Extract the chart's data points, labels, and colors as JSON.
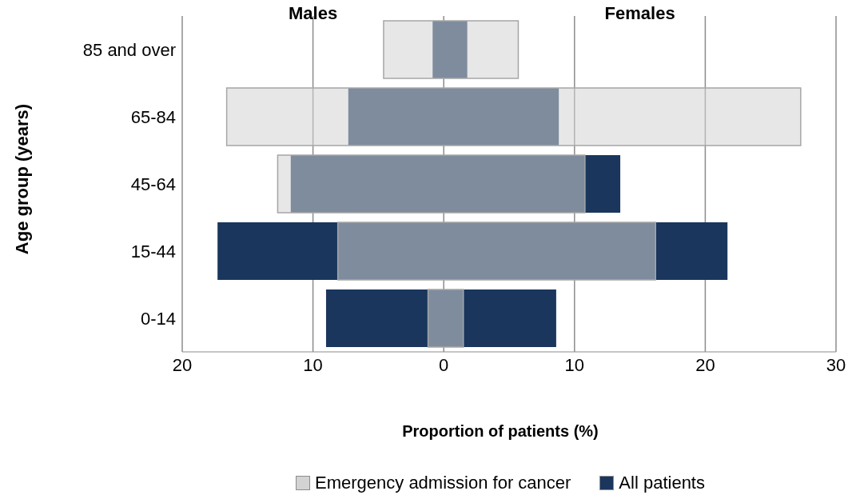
{
  "chart_data": {
    "type": "bar",
    "orientation": "horizontal",
    "xlabel": "Proportion of patients (%)",
    "ylabel": "Age group (years)",
    "annotations": [
      "Males",
      "Females"
    ],
    "categories": [
      "85 and over",
      "65-84",
      "45-64",
      "15-44",
      "0-14"
    ],
    "series": [
      {
        "name": "All patients",
        "color": "#1a365d",
        "base": [
          -0.85,
          -7.3,
          -11.7,
          -17.3,
          -9.0
        ],
        "values": [
          2.65,
          16.1,
          25.2,
          39.0,
          17.6
        ]
      },
      {
        "name": "Emergency admission for cancer",
        "color": "#d3d3d3",
        "base": [
          -4.6,
          -16.6,
          -12.7,
          -8.1,
          -1.2
        ],
        "values": [
          10.3,
          43.9,
          23.5,
          24.3,
          2.7
        ]
      }
    ],
    "xlim": [
      -20,
      30
    ],
    "xticks": [
      {
        "value": -20,
        "label": "20"
      },
      {
        "value": -10,
        "label": "10"
      },
      0,
      10,
      20,
      30
    ],
    "grid": "x",
    "legend": "bottom"
  }
}
